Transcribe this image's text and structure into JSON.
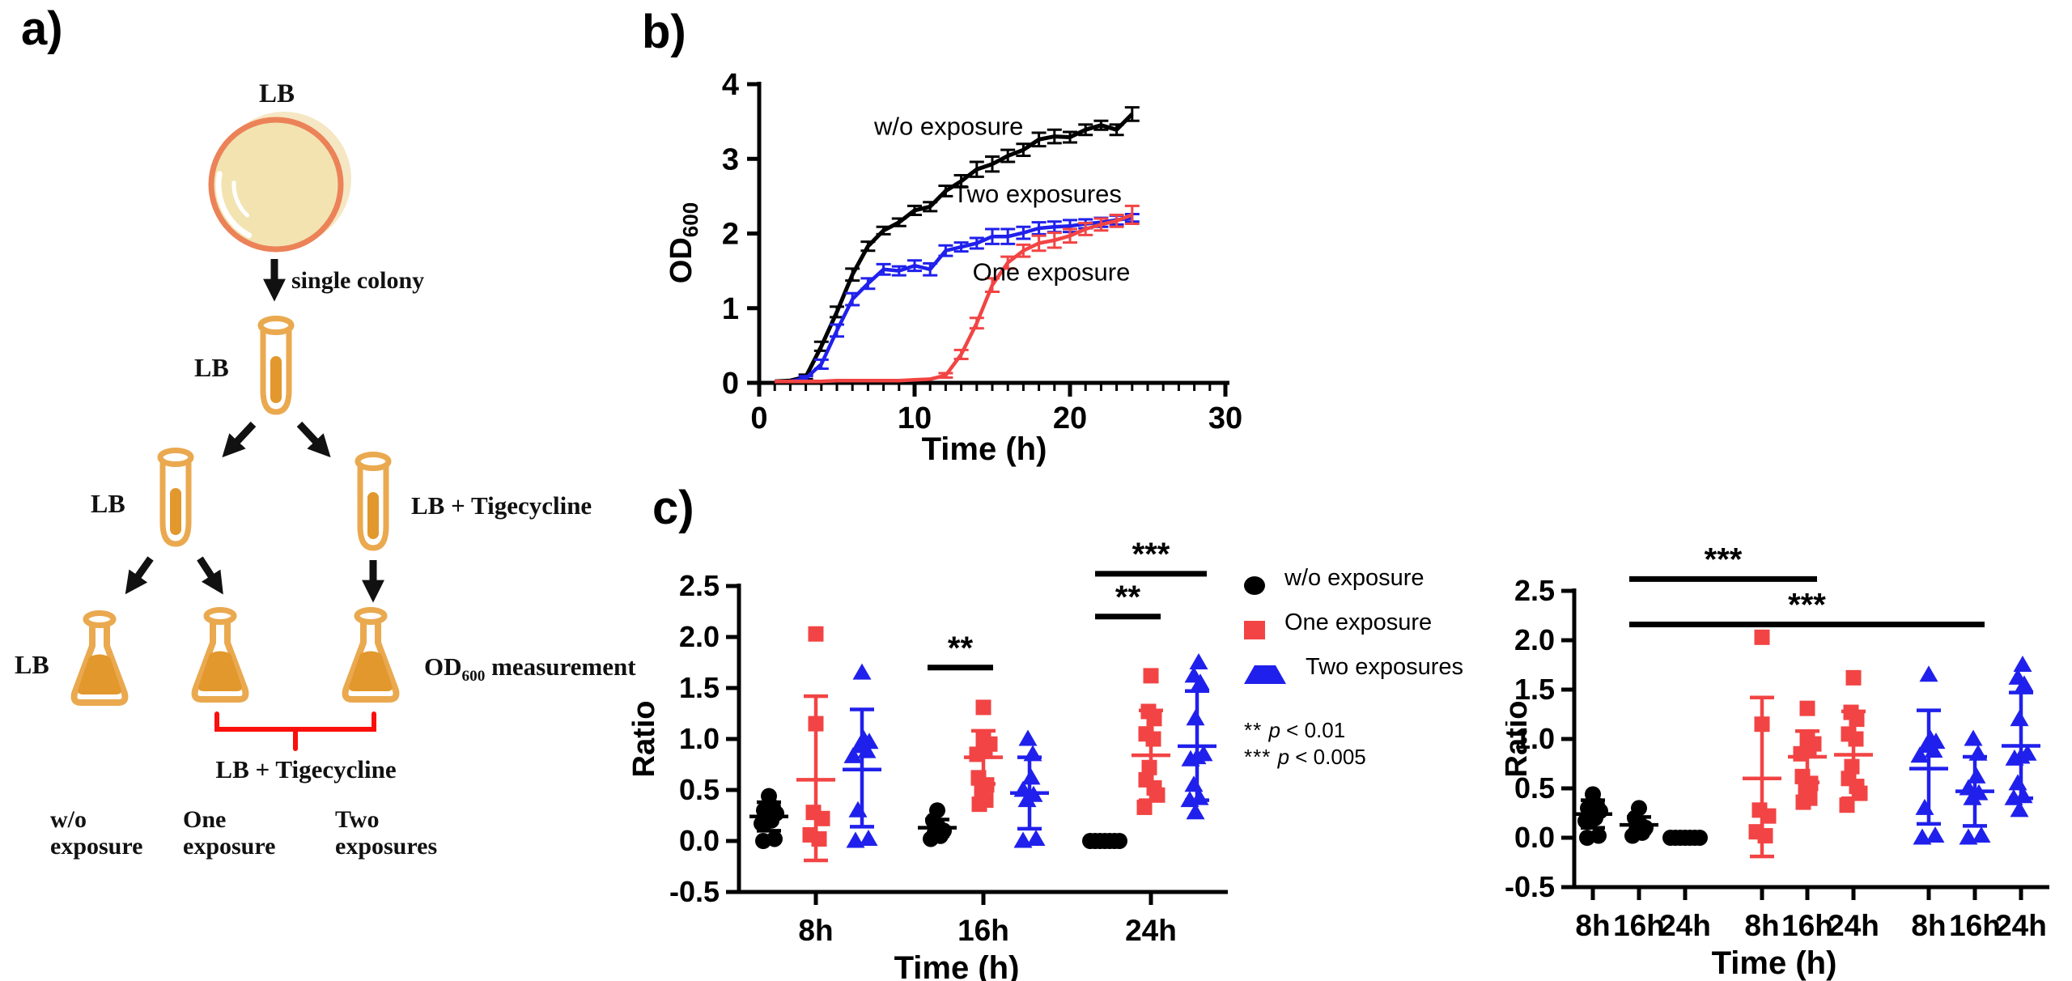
{
  "figure_labels": {
    "a": "a)",
    "b": "b)",
    "c": "c)"
  },
  "panel_a": {
    "plate_label": "LB",
    "step1_label": "single colony",
    "tube1_label": "LB",
    "tube2_label": "LB",
    "tube3_label": "LB + Tigecycline",
    "flask1_label": "LB",
    "od_label": {
      "prefix": "OD",
      "sub": "600",
      "suffix": " measurement"
    },
    "bracket_label": "LB + Tigecycline",
    "group_labels": [
      "w/o\nexposure",
      "One\nexposure",
      "Two\nexposures"
    ],
    "colors": {
      "glass": "#eaa94f",
      "liquid": "#e2982d",
      "plate_fill": "#f2e3b1",
      "plate_ring": "#ec8258",
      "plate_shadow": "#f5e7c3",
      "bracket": "#fa0f0c",
      "arrow": "#111111"
    }
  },
  "panel_c_legend": {
    "items": [
      {
        "label": "w/o exposure",
        "marker": "circle",
        "color": "#000000"
      },
      {
        "label": "One exposure",
        "marker": "square",
        "color": "#f24444"
      },
      {
        "label": "Two exposures",
        "marker": "triangle",
        "color": "#2020ec"
      }
    ],
    "sig_key": [
      {
        "stars": "**",
        "p": "p",
        "threshold": " < 0.01"
      },
      {
        "stars": "***",
        "p": "p",
        "threshold": " < 0.005"
      }
    ]
  },
  "chart_data": [
    {
      "id": "growth_curves",
      "type": "line",
      "xlabel": "Time (h)",
      "ylabel": {
        "text": "OD",
        "sub": "600"
      },
      "xlim": [
        0,
        30
      ],
      "ylim": [
        0,
        4
      ],
      "xticks_major": [
        0,
        10,
        20,
        30
      ],
      "xtick_minor_step": 1,
      "yticks": [
        0,
        1,
        2,
        3,
        4
      ],
      "x": [
        1,
        2,
        3,
        4,
        5,
        6,
        7,
        8,
        9,
        10,
        11,
        12,
        13,
        14,
        15,
        16,
        17,
        18,
        19,
        20,
        21,
        22,
        23,
        24
      ],
      "series": [
        {
          "name": "w/o exposure",
          "color": "#000000",
          "y": [
            0.02,
            0.03,
            0.08,
            0.49,
            0.95,
            1.45,
            1.83,
            2.04,
            2.15,
            2.31,
            2.36,
            2.57,
            2.7,
            2.86,
            2.93,
            3.04,
            3.12,
            3.26,
            3.3,
            3.29,
            3.39,
            3.45,
            3.39,
            3.6
          ],
          "err": [
            0,
            0,
            0.03,
            0.06,
            0.07,
            0.08,
            0.06,
            0.05,
            0.05,
            0.06,
            0.06,
            0.07,
            0.08,
            0.1,
            0.1,
            0.08,
            0.08,
            0.09,
            0.09,
            0.07,
            0.07,
            0.06,
            0.07,
            0.09
          ]
        },
        {
          "name": "Two exposures",
          "color": "#2020ec",
          "y": [
            0.02,
            0.02,
            0.06,
            0.25,
            0.7,
            1.12,
            1.33,
            1.52,
            1.5,
            1.57,
            1.52,
            1.77,
            1.82,
            1.87,
            1.96,
            1.96,
            2.01,
            2.07,
            2.09,
            2.1,
            2.13,
            2.15,
            2.18,
            2.21
          ],
          "err": [
            0,
            0,
            0.03,
            0.06,
            0.08,
            0.08,
            0.07,
            0.07,
            0.06,
            0.07,
            0.08,
            0.07,
            0.06,
            0.07,
            0.1,
            0.1,
            0.08,
            0.08,
            0.07,
            0.08,
            0.06,
            0.06,
            0.06,
            0.05
          ]
        },
        {
          "name": "One exposure",
          "color": "#f24444",
          "y": [
            0.02,
            0.02,
            0.02,
            0.02,
            0.03,
            0.03,
            0.03,
            0.03,
            0.03,
            0.04,
            0.05,
            0.1,
            0.38,
            0.8,
            1.31,
            1.61,
            1.77,
            1.87,
            1.91,
            1.97,
            2.06,
            2.12,
            2.17,
            2.25
          ],
          "err": [
            0,
            0,
            0,
            0,
            0,
            0,
            0,
            0,
            0,
            0,
            0.02,
            0.03,
            0.06,
            0.07,
            0.09,
            0.08,
            0.08,
            0.1,
            0.1,
            0.09,
            0.08,
            0.08,
            0.08,
            0.12
          ]
        }
      ],
      "annotations": [
        {
          "text": "w/o exposure",
          "t": 12.2,
          "od": 3.32
        },
        {
          "text": "Two exposures",
          "t": 17.9,
          "od": 2.42
        },
        {
          "text": "One exposure",
          "t": 18.8,
          "od": 1.37
        }
      ]
    },
    {
      "id": "ratio_by_time",
      "type": "scatter",
      "xlabel": "Time (h)",
      "ylabel": "Ratio",
      "ylim": [
        -0.5,
        2.5
      ],
      "yticks": [
        -0.5,
        0,
        0.5,
        1,
        1.5,
        2,
        2.5
      ],
      "ytick_labels": [
        "-0.5",
        "0.0",
        "0.5",
        "1.0",
        "1.5",
        "2.0",
        "2.5"
      ],
      "group_labels": [
        "8h",
        "16h",
        "24h"
      ],
      "columns": [
        {
          "series": "w/o exposure",
          "group": "8h",
          "values": [
            0,
            0.02,
            0.17,
            0.2,
            0.24,
            0.27,
            0.3,
            0.33,
            0.44
          ],
          "dx": [
            -7,
            7,
            -9,
            3,
            -3,
            9,
            -6,
            5,
            0
          ],
          "mean": 0.24,
          "lo": 0.1,
          "hi": 0.38
        },
        {
          "series": "One exposure",
          "group": "8h",
          "values": [
            0.02,
            0.06,
            0.22,
            0.28,
            1.15,
            2.03
          ],
          "dx": [
            4,
            -7,
            8,
            -3,
            0,
            0
          ],
          "mean": 0.6,
          "lo": -0.19,
          "hi": 1.42
        },
        {
          "series": "Two exposures",
          "group": "8h",
          "values": [
            0,
            0.02,
            0.3,
            0.83,
            0.88,
            0.93,
            0.97,
            1.0,
            1.65
          ],
          "dx": [
            -8,
            8,
            -5,
            -11,
            6,
            -3,
            9,
            2,
            0
          ],
          "mean": 0.7,
          "lo": 0.14,
          "hi": 1.29
        },
        {
          "series": "w/o exposure",
          "group": "16h",
          "values": [
            0.02,
            0.05,
            0.08,
            0.1,
            0.13,
            0.2,
            0.3
          ],
          "dx": [
            -8,
            4,
            -3,
            8,
            2,
            -5,
            0
          ],
          "mean": 0.13,
          "lo": 0.05,
          "hi": 0.21
        },
        {
          "series": "One exposure",
          "group": "16h",
          "values": [
            0.36,
            0.4,
            0.5,
            0.55,
            0.62,
            0.85,
            0.88,
            0.95,
            1.0,
            1.31
          ],
          "dx": [
            -5,
            3,
            -2,
            4,
            -6,
            -8,
            2,
            8,
            0,
            0
          ],
          "mean": 0.82,
          "lo": 0.56,
          "hi": 1.08
        },
        {
          "series": "Two exposures",
          "group": "16h",
          "values": [
            0,
            0.02,
            0.4,
            0.45,
            0.5,
            0.62,
            0.85,
            1.0
          ],
          "dx": [
            -8,
            8,
            -3,
            5,
            -8,
            2,
            4,
            -2
          ],
          "mean": 0.47,
          "lo": 0.12,
          "hi": 0.82
        },
        {
          "series": "w/o exposure",
          "group": "24h",
          "values": [
            0,
            0,
            0,
            0,
            0,
            0,
            0
          ],
          "dx": [
            -18,
            -12,
            -6,
            0,
            6,
            12,
            18
          ],
          "mean": 0.01,
          "lo": 0.01,
          "hi": 0.01
        },
        {
          "series": "One exposure",
          "group": "24h",
          "values": [
            0.33,
            0.45,
            0.52,
            0.6,
            0.72,
            1.0,
            1.05,
            1.2,
            1.27,
            1.62
          ],
          "dx": [
            -8,
            8,
            4,
            -6,
            -2,
            3,
            -6,
            4,
            -3,
            0
          ],
          "mean": 0.84,
          "lo": 0.4,
          "hi": 1.28
        },
        {
          "series": "Two exposures",
          "group": "24h",
          "values": [
            0.28,
            0.4,
            0.42,
            0.55,
            0.8,
            0.82,
            0.85,
            1.2,
            1.55,
            1.62,
            1.75
          ],
          "dx": [
            -2,
            -9,
            3,
            -4,
            -8,
            0,
            8,
            -2,
            4,
            -4,
            2
          ],
          "mean": 0.93,
          "lo": 0.4,
          "hi": 1.47
        }
      ],
      "sig_bars": [
        {
          "label": "**",
          "a": 3,
          "b": 4,
          "y": 1.7
        },
        {
          "label": "**",
          "a": 6,
          "b": 7,
          "y": 2.2
        },
        {
          "label": "***",
          "a": 6,
          "b": 8,
          "y": 2.62
        }
      ]
    },
    {
      "id": "ratio_by_group",
      "type": "scatter",
      "xlabel": "Time (h)",
      "ylabel": "Ratio",
      "ylim": [
        -0.5,
        2.5
      ],
      "yticks": [
        -0.5,
        0,
        0.5,
        1,
        1.5,
        2,
        2.5
      ],
      "ytick_labels": [
        "-0.5",
        "0.0",
        "0.5",
        "1.0",
        "1.5",
        "2.0",
        "2.5"
      ],
      "column_order": [
        0,
        3,
        6,
        1,
        4,
        7,
        2,
        5,
        8
      ],
      "tick_labels": [
        "8h",
        "16h",
        "24h",
        "8h",
        "16h",
        "24h",
        "8h",
        "16h",
        "24h"
      ],
      "sig_bars": [
        {
          "label": "***",
          "a": 1,
          "b": 4,
          "y": 2.62
        },
        {
          "label": "***",
          "a": 1,
          "b": 7,
          "y": 2.16
        }
      ]
    }
  ]
}
